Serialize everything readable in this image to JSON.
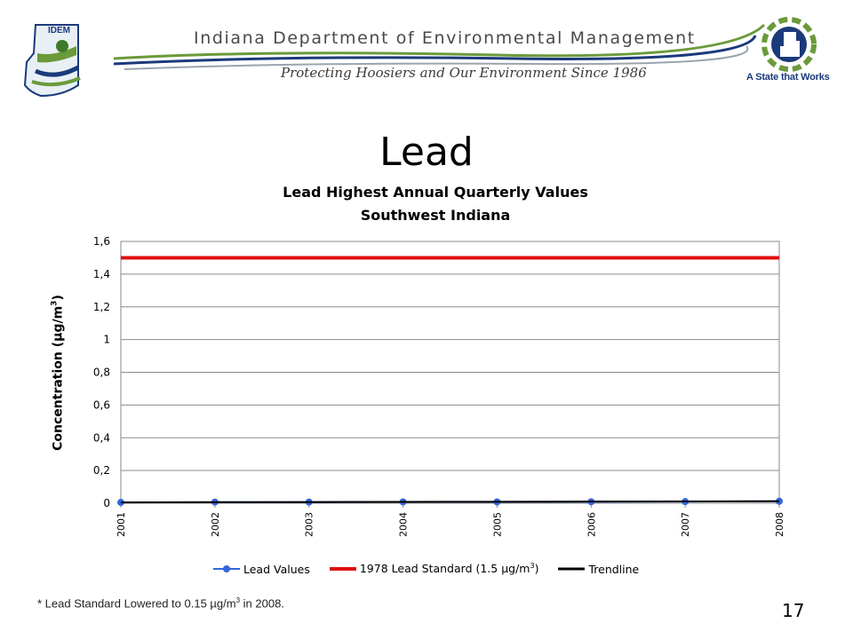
{
  "banner": {
    "title": "Indiana Department of Environmental Management",
    "tagline": "Protecting Hoosiers and Our Environment Since 1986",
    "idem_logo_text": "IDEM",
    "state_logo_text": "A State that Works",
    "colors": {
      "green": "#6a9a3a",
      "navy": "#1b3a7a",
      "gray": "#4a4a4a"
    }
  },
  "slide": {
    "title": "Lead",
    "footnote_pre": "* Lead Standard Lowered to 0.15 µg/m",
    "footnote_sup": "3",
    "footnote_post": " in 2008.",
    "page_number": "17"
  },
  "chart_data": {
    "type": "line",
    "title_line1": "Lead Highest Annual Quarterly Values",
    "title_line2": "Southwest Indiana",
    "ylabel_pre": "Concentration (µg/m",
    "ylabel_sup": "3",
    "ylabel_post": ")",
    "ylim": [
      0,
      1.6
    ],
    "yticks": [
      "0",
      "0,2",
      "0,4",
      "0,6",
      "0,8",
      "1",
      "1,2",
      "1,4",
      "1,6"
    ],
    "x": [
      "2001",
      "2002",
      "2003",
      "2004",
      "2005",
      "2006",
      "2007",
      "2008"
    ],
    "grid": true,
    "legend_position": "bottom",
    "series": [
      {
        "name": "Lead Values",
        "color": "#3366dd",
        "marker": "circle",
        "values": [
          0.005,
          0.007,
          0.007,
          0.008,
          0.008,
          0.009,
          0.01,
          0.012
        ]
      },
      {
        "name_pre": "1978 Lead Standard (1.5 µg/m",
        "name_sup": "3",
        "name_post": ")",
        "color": "#e01010",
        "values": [
          1.5,
          1.5,
          1.5,
          1.5,
          1.5,
          1.5,
          1.5,
          1.5
        ]
      },
      {
        "name": "Trendline",
        "color": "#000000",
        "values": [
          0.005,
          0.006,
          0.007,
          0.008,
          0.009,
          0.01,
          0.011,
          0.012
        ]
      }
    ]
  }
}
